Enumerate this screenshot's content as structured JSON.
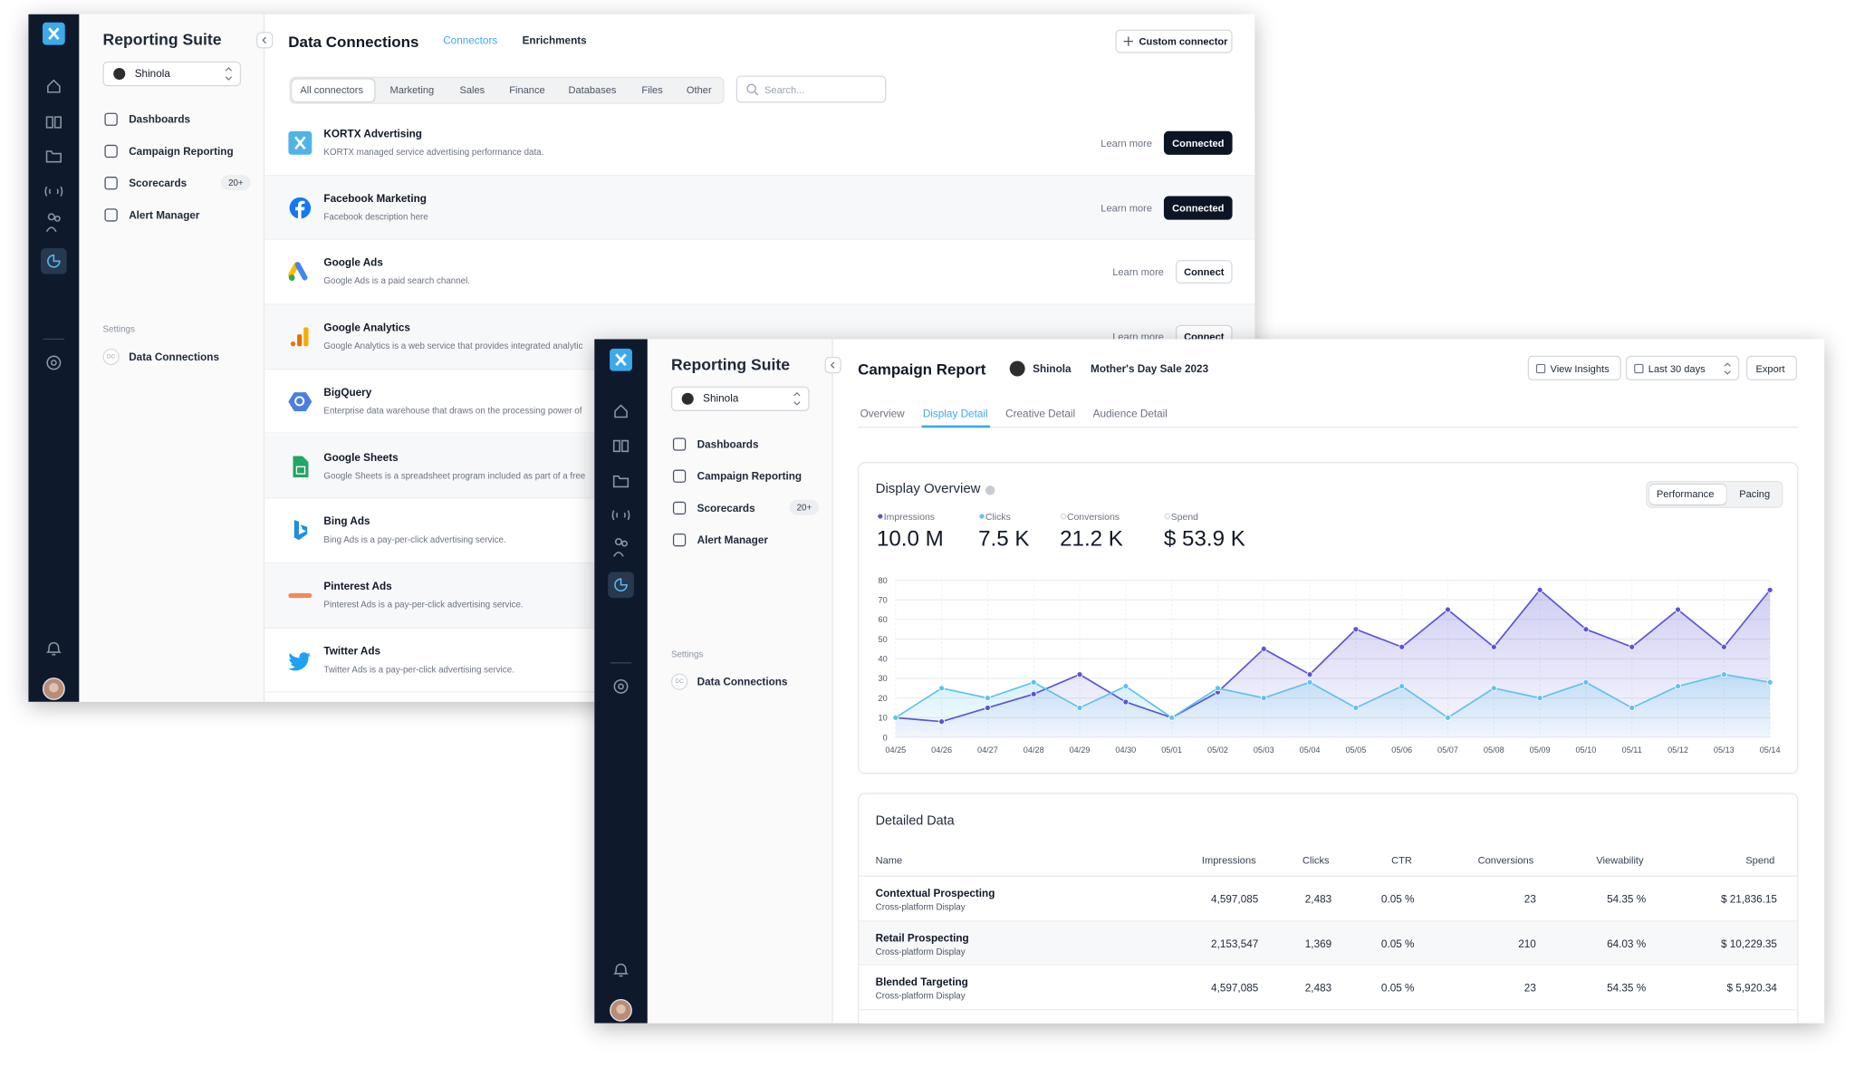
{
  "connections_window": {
    "app_name": "Reporting Suite",
    "account": "Shinola",
    "nav": [
      {
        "label": "Dashboards"
      },
      {
        "label": "Campaign Reporting"
      },
      {
        "label": "Scorecards",
        "badge": "20+"
      },
      {
        "label": "Alert Manager"
      }
    ],
    "settings_heading": "Settings",
    "settings_item": {
      "badge": "DC",
      "label": "Data Connections"
    },
    "title": "Data Connections",
    "tabs": [
      "Connectors",
      "Enrichments"
    ],
    "custom_button": "Custom connector",
    "filters": [
      "All connectors",
      "Marketing",
      "Sales",
      "Finance",
      "Databases",
      "Files",
      "Other"
    ],
    "search_placeholder": "Search...",
    "connectors": [
      {
        "name": "KORTX Advertising",
        "description": "KORTX managed service advertising performance data.",
        "link": "Learn more",
        "button": "Connected"
      },
      {
        "name": "Facebook Marketing",
        "description": "Facebook description here",
        "link": "Learn more",
        "button": "Connected"
      },
      {
        "name": "Google Ads",
        "description": "Google Ads is a paid search channel.",
        "link": "Learn more",
        "button": "Connect"
      },
      {
        "name": "Google Analytics",
        "description": "Google Analytics is a web service that provides integrated analytic",
        "link": "Learn more",
        "button": "Connect"
      },
      {
        "name": "BigQuery",
        "description": "Enterprise data warehouse that draws on the processing power of"
      },
      {
        "name": "Google Sheets",
        "description": "Google Sheets is a spreadsheet program included as part of a free"
      },
      {
        "name": "Bing Ads",
        "description": "Bing Ads is a pay-per-click advertising service."
      },
      {
        "name": "Pinterest Ads",
        "description": "Pinterest Ads is a pay-per-click advertising service."
      },
      {
        "name": "Twitter Ads",
        "description": "Twitter Ads is a pay-per-click advertising service."
      }
    ]
  },
  "report_window": {
    "app_name": "Reporting Suite",
    "account": "Shinola",
    "nav": [
      {
        "label": "Dashboards"
      },
      {
        "label": "Campaign Reporting"
      },
      {
        "label": "Scorecards",
        "badge": "20+"
      },
      {
        "label": "Alert Manager"
      }
    ],
    "settings_heading": "Settings",
    "settings_item": {
      "badge": "DC",
      "label": "Data Connections"
    },
    "title": "Campaign Report",
    "brand": "Shinola",
    "campaign": "Mother's Day Sale 2023",
    "buttons": [
      "View Insights",
      "Last 30 days",
      "Export"
    ],
    "tabs": [
      "Overview",
      "Display Detail",
      "Creative Detail",
      "Audience Detail"
    ],
    "overview_title": "Display Overview",
    "toggle": [
      "Performance",
      "Pacing"
    ],
    "kpis": [
      {
        "value": "10.0 M"
      },
      {
        "value": "7.5 K"
      },
      {
        "label": "Conversions",
        "value": "21.2 K"
      },
      {
        "label": "Spend",
        "value": "$ 53.9 K"
      }
    ],
    "table": {
      "title": "Detailed Data",
      "columns": [
        "Name",
        "Impressions",
        "Clicks",
        "CTR",
        "Conversions",
        "Viewability",
        "Spend"
      ],
      "rows": [
        {
          "name": "Contextual Prospecting",
          "sub": "Cross-platform Display",
          "cells": [
            "4,597,085",
            "2,483",
            "0.05 %",
            "23",
            "54.35 %",
            "$ 21,836.15"
          ]
        },
        {
          "name": "Retail Prospecting",
          "sub": "Cross-platform Display",
          "cells": [
            "2,153,547",
            "1,369",
            "0.05 %",
            "210",
            "64.03 %",
            "$ 10,229.35"
          ]
        },
        {
          "name": "Blended Targeting",
          "sub": "Cross-platform Display",
          "cells": [
            "4,597,085",
            "2,483",
            "0.05 %",
            "23",
            "54.35 %",
            "$ 5,920.34"
          ]
        }
      ]
    }
  },
  "chart_data": {
    "type": "line",
    "x": [
      "04/25",
      "04/26",
      "04/27",
      "04/28",
      "04/29",
      "04/30",
      "05/01",
      "05/02",
      "05/03",
      "05/04",
      "05/05",
      "05/06",
      "05/07",
      "05/08",
      "05/09",
      "05/10",
      "05/11",
      "05/12",
      "05/13",
      "05/14"
    ],
    "series": [
      {
        "name": "Impressions",
        "color": "#5b54d6",
        "values": [
          10,
          8,
          15,
          22,
          32,
          18,
          10,
          23,
          45,
          32,
          55,
          46,
          65,
          46,
          75,
          55,
          46,
          65,
          46,
          75
        ]
      },
      {
        "name": "Clicks",
        "color": "#5ec3ec",
        "values": [
          10,
          25,
          20,
          28,
          15,
          26,
          10,
          25,
          20,
          28,
          15,
          26,
          10,
          25,
          20,
          28,
          15,
          26,
          32,
          28
        ]
      }
    ],
    "ylim": [
      0,
      80
    ],
    "yticks": [
      0,
      10,
      20,
      30,
      40,
      50,
      60,
      70,
      80
    ],
    "grid": true
  }
}
